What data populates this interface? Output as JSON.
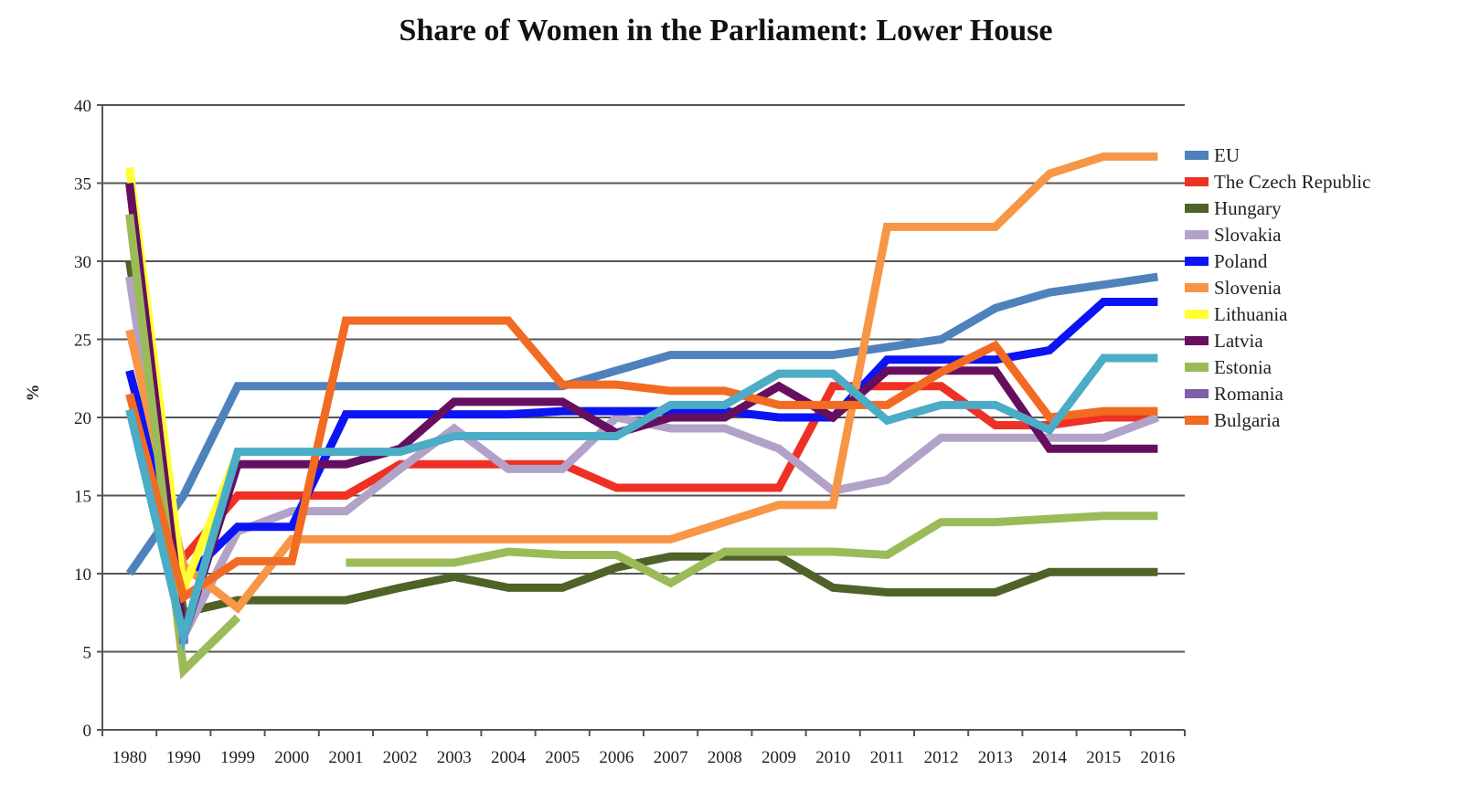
{
  "chart_data": {
    "type": "line",
    "title": "Share of Women in the Parliament: Lower House",
    "xlabel": "",
    "ylabel": "%",
    "ylim": [
      0,
      40
    ],
    "yticks": [
      "0",
      "5",
      "10",
      "15",
      "20",
      "25",
      "30",
      "35",
      "40"
    ],
    "grid": true,
    "legend_placement": "right",
    "categories": [
      "1980",
      "1990",
      "1999",
      "2000",
      "2001",
      "2002",
      "2003",
      "2004",
      "2005",
      "2006",
      "2007",
      "2008",
      "2009",
      "2010",
      "2011",
      "2012",
      "2013",
      "2014",
      "2015",
      "2016"
    ],
    "series": [
      {
        "name": "EU",
        "color": "#4f81bd",
        "values": [
          10,
          15,
          22,
          22,
          22,
          22,
          22,
          22,
          22,
          23,
          24,
          24,
          24,
          24,
          24.5,
          25,
          27,
          28,
          28.5,
          29
        ]
      },
      {
        "name": "The Czech Republic",
        "color": "#ee3124",
        "values": [
          null,
          11,
          15,
          15,
          15,
          17,
          17,
          17,
          17,
          15.5,
          15.5,
          15.5,
          15.5,
          22,
          22,
          22,
          19.5,
          19.5,
          20,
          20
        ]
      },
      {
        "name": "Hungary",
        "color": "#4f6228",
        "values": [
          30,
          7.5,
          8.3,
          8.3,
          8.3,
          9.1,
          9.8,
          9.1,
          9.1,
          10.4,
          11.1,
          11.1,
          11.1,
          9.1,
          8.8,
          8.8,
          8.8,
          10.1,
          10.1,
          10.1
        ]
      },
      {
        "name": "Slovakia",
        "color": "#b3a2c7",
        "values": [
          29,
          6,
          12.7,
          14,
          14,
          16.7,
          19.3,
          16.7,
          16.7,
          20,
          19.3,
          19.3,
          18,
          15.3,
          16,
          18.7,
          18.7,
          18.7,
          18.7,
          20
        ]
      },
      {
        "name": "Poland",
        "color": "#0a14f5",
        "values": [
          23,
          9.6,
          13,
          13,
          20.2,
          20.2,
          20.2,
          20.2,
          20.4,
          20.4,
          20.4,
          20.4,
          20,
          20,
          23.7,
          23.7,
          23.7,
          24.3,
          27.4,
          27.4
        ]
      },
      {
        "name": "Slovenia",
        "color": "#f79646",
        "values": [
          25.6,
          10.5,
          7.8,
          12.2,
          12.2,
          12.2,
          12.2,
          12.2,
          12.2,
          12.2,
          12.2,
          13.3,
          14.4,
          14.4,
          32.2,
          32.2,
          32.2,
          35.6,
          36.7,
          36.7
        ]
      },
      {
        "name": "Lithuania",
        "color": "#ffff33",
        "values": [
          36,
          9,
          17.7,
          null,
          null,
          null,
          null,
          null,
          null,
          null,
          null,
          null,
          null,
          null,
          null,
          null,
          null,
          null,
          null,
          null
        ]
      },
      {
        "name": "Latvia",
        "color": "#660e5f",
        "values": [
          35,
          6,
          17,
          17,
          17,
          18,
          21,
          21,
          21,
          19,
          20,
          20,
          22,
          20,
          23,
          23,
          23,
          18,
          18,
          18
        ]
      },
      {
        "name": "Estonia",
        "color": "#9bbb59",
        "values": [
          33,
          3.8,
          7.2,
          null,
          10.7,
          10.7,
          10.7,
          11.4,
          11.2,
          11.2,
          9.4,
          11.4,
          11.4,
          11.4,
          11.2,
          13.3,
          13.3,
          13.5,
          13.7,
          13.7
        ]
      },
      {
        "name": "Romania",
        "color": "#7f5fa8",
        "values": [
          null,
          5.8,
          null,
          null,
          null,
          null,
          null,
          null,
          null,
          null,
          null,
          null,
          null,
          null,
          null,
          null,
          null,
          null,
          null,
          null
        ]
      },
      {
        "name": "Bulgaria",
        "color": "#f26b22",
        "values": [
          21.5,
          8.5,
          10.8,
          10.8,
          26.2,
          26.2,
          26.2,
          26.2,
          22.1,
          22.1,
          21.7,
          21.7,
          20.8,
          20.8,
          20.8,
          22.9,
          24.6,
          20,
          20.4,
          20.4
        ]
      },
      {
        "color": "#4bacc6",
        "values": [
          20.5,
          6,
          17.8,
          17.8,
          17.8,
          17.8,
          18.8,
          18.8,
          18.8,
          18.8,
          20.8,
          20.8,
          22.8,
          22.8,
          19.8,
          20.8,
          20.8,
          19.2,
          23.8,
          23.8
        ]
      }
    ]
  }
}
